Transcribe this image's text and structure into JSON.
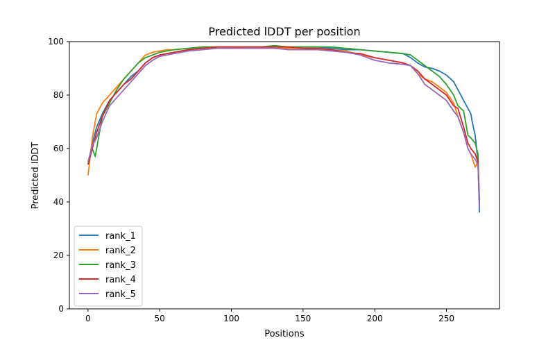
{
  "chart_data": {
    "type": "line",
    "title": "Predicted lDDT per position",
    "xlabel": "Positions",
    "ylabel": "Predicted lDDT",
    "xlim": [
      -13,
      287
    ],
    "ylim": [
      0,
      100
    ],
    "xticks": [
      0,
      50,
      100,
      150,
      200,
      250
    ],
    "yticks": [
      0,
      20,
      40,
      60,
      80,
      100
    ],
    "grid": false,
    "legend": "lower-left",
    "series": [
      {
        "name": "rank_1",
        "color": "#1f77b4",
        "x": [
          0,
          3,
          6,
          10,
          15,
          20,
          25,
          30,
          35,
          40,
          45,
          50,
          55,
          60,
          70,
          80,
          90,
          100,
          110,
          120,
          130,
          140,
          150,
          160,
          170,
          180,
          190,
          200,
          210,
          220,
          225,
          230,
          235,
          240,
          245,
          250,
          255,
          258,
          262,
          265,
          267,
          268,
          270,
          272,
          273
        ],
        "y": [
          54,
          62,
          68,
          73,
          78,
          81,
          84,
          87,
          89,
          92,
          94,
          95,
          95.5,
          96,
          97,
          97.5,
          98,
          98,
          98,
          98,
          98,
          98,
          98,
          98,
          97.5,
          97,
          97,
          96.5,
          96,
          95.5,
          94,
          92,
          90.5,
          90,
          89,
          87.5,
          85,
          82,
          78,
          75,
          73,
          70,
          65,
          55,
          36
        ]
      },
      {
        "name": "rank_2",
        "color": "#ff7f0e",
        "x": [
          0,
          3,
          6,
          10,
          15,
          20,
          25,
          30,
          35,
          40,
          45,
          50,
          55,
          60,
          70,
          80,
          90,
          100,
          110,
          120,
          130,
          140,
          150,
          160,
          170,
          180,
          190,
          200,
          210,
          220,
          225,
          230,
          235,
          240,
          245,
          250,
          255,
          258,
          262,
          265,
          267,
          270,
          272,
          273
        ],
        "y": [
          50,
          64,
          73,
          77,
          80,
          83,
          86,
          89,
          92,
          95,
          96,
          96.5,
          97,
          97,
          97.5,
          98,
          98,
          98,
          97.5,
          97.5,
          97.5,
          97.5,
          97.5,
          97,
          97,
          96.5,
          95,
          94,
          93,
          92,
          91,
          88,
          86,
          85,
          83,
          81,
          77,
          72,
          66,
          60,
          58,
          53,
          55,
          40
        ]
      },
      {
        "name": "rank_3",
        "color": "#2ca02c",
        "x": [
          0,
          3,
          5,
          10,
          15,
          20,
          25,
          30,
          35,
          40,
          45,
          50,
          55,
          60,
          70,
          80,
          90,
          100,
          110,
          120,
          130,
          140,
          150,
          160,
          170,
          180,
          190,
          200,
          210,
          220,
          225,
          230,
          235,
          240,
          245,
          250,
          255,
          258,
          262,
          265,
          267,
          270,
          272,
          273
        ],
        "y": [
          55,
          60,
          57,
          72,
          77,
          82,
          86,
          89,
          92,
          94,
          95,
          96,
          96.5,
          97,
          97.5,
          98,
          98,
          98,
          98,
          98,
          98.5,
          98,
          98,
          98,
          98,
          97.5,
          97,
          96.5,
          96,
          95.5,
          95,
          93,
          91,
          89,
          87,
          84,
          80,
          76,
          74,
          65,
          64,
          62,
          58,
          40
        ]
      },
      {
        "name": "rank_4",
        "color": "#d62728",
        "x": [
          0,
          3,
          6,
          10,
          15,
          20,
          25,
          30,
          35,
          40,
          45,
          50,
          55,
          60,
          70,
          80,
          90,
          100,
          110,
          120,
          130,
          140,
          150,
          160,
          170,
          180,
          190,
          200,
          210,
          220,
          225,
          230,
          235,
          240,
          245,
          250,
          255,
          258,
          262,
          265,
          267,
          270,
          272,
          273
        ],
        "y": [
          54,
          60,
          66,
          72,
          78,
          81,
          84,
          86,
          89,
          92,
          94,
          95,
          95.5,
          96,
          97,
          97.5,
          98,
          98,
          98,
          98,
          98,
          98,
          97.5,
          97.5,
          97,
          96,
          95.5,
          94,
          93,
          92,
          91,
          89,
          86,
          84,
          82,
          80,
          76,
          75,
          68,
          62,
          60,
          58,
          55,
          39
        ]
      },
      {
        "name": "rank_5",
        "color": "#9467bd",
        "x": [
          0,
          3,
          6,
          10,
          15,
          20,
          25,
          30,
          35,
          40,
          45,
          50,
          55,
          60,
          70,
          80,
          90,
          100,
          110,
          120,
          130,
          140,
          150,
          160,
          170,
          180,
          190,
          200,
          210,
          220,
          225,
          230,
          235,
          240,
          245,
          250,
          255,
          258,
          262,
          265,
          267,
          270,
          272,
          273
        ],
        "y": [
          55,
          61,
          64,
          70,
          76,
          79,
          82,
          85,
          88,
          91,
          93,
          94.5,
          95,
          95.5,
          96.5,
          97,
          97.5,
          97.5,
          97.5,
          97.5,
          97.5,
          97,
          97,
          97,
          96.5,
          96,
          95,
          93,
          92,
          91.5,
          91,
          88,
          84,
          82,
          80,
          78,
          74,
          72,
          66,
          60,
          58,
          56,
          54,
          38
        ]
      }
    ]
  }
}
